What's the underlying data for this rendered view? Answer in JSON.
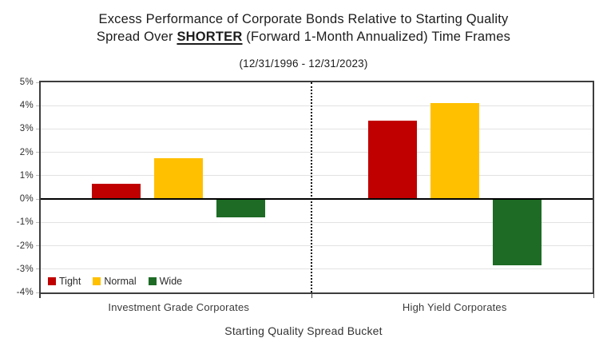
{
  "title": {
    "line1": "Excess Performance of Corporate Bonds Relative to Starting Quality",
    "line2_pre": "Spread Over ",
    "line2_emphasis": "SHORTER",
    "line2_post": " (Forward 1-Month Annualized) Time Frames"
  },
  "subtitle": "(12/31/1996 - 12/31/2023)",
  "chart_data": {
    "type": "bar",
    "title": "Excess Performance of Corporate Bonds Relative to Starting Quality Spread Over SHORTER (Forward 1-Month Annualized) Time Frames",
    "subtitle": "(12/31/1996 - 12/31/2023)",
    "categories": [
      "Investment Grade Corporates",
      "High Yield Corporates"
    ],
    "series": [
      {
        "name": "Tight",
        "color": "#C00000",
        "values": [
          0.65,
          3.35
        ]
      },
      {
        "name": "Normal",
        "color": "#FFC000",
        "values": [
          1.75,
          4.1
        ]
      },
      {
        "name": "Wide",
        "color": "#1E6B25",
        "values": [
          -0.8,
          -2.85
        ]
      }
    ],
    "xlabel": "Starting Quality Spread Bucket",
    "ylabel": "",
    "ylim": [
      -4,
      5
    ],
    "ytick_step": 1,
    "ytick_labels": [
      "5%",
      "4%",
      "3%",
      "2%",
      "1%",
      "0%",
      "-1%",
      "-2%",
      "-3%",
      "-4%"
    ],
    "grid": true,
    "legend_position": "inside-bottom-left",
    "divider": "dotted vertical line between category groups"
  }
}
